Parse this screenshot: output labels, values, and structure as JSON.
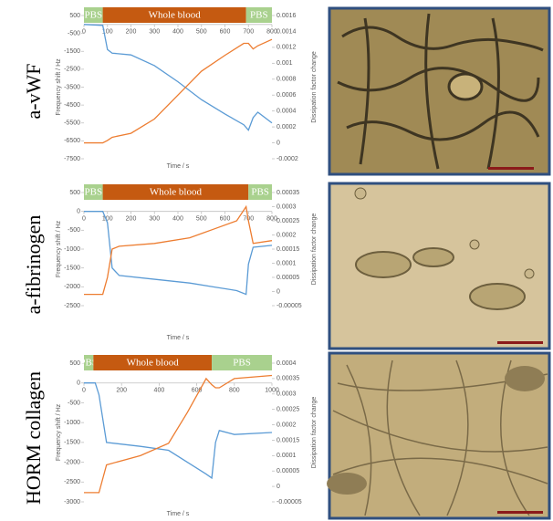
{
  "chart_data": [
    {
      "type": "line",
      "panel_label": "a-vWF",
      "xlabel": "Time / s",
      "ylabel": "Frequency shift / Hz",
      "y2label": "Dissipation factor change",
      "bands": [
        {
          "text": "PBS",
          "start": 0,
          "end": 80,
          "color": "#a9d18e"
        },
        {
          "text": "Whole blood",
          "start": 80,
          "end": 690,
          "color": "#c55a11"
        },
        {
          "text": "PBS",
          "start": 690,
          "end": 800,
          "color": "#a9d18e"
        }
      ],
      "x": [
        0,
        80,
        100,
        120,
        200,
        300,
        400,
        500,
        600,
        680,
        700,
        720,
        740,
        800
      ],
      "series": [
        {
          "color": "#5b9bd5",
          "values": [
            0,
            -50,
            -1400,
            -1600,
            -1700,
            -2300,
            -3200,
            -4200,
            -5000,
            -5600,
            -5900,
            -5200,
            -4900,
            -5500
          ]
        },
        {
          "color": "#ed7d31",
          "axis": "y2",
          "values": [
            0,
            0,
            3e-05,
            7e-05,
            0.00012,
            0.0003,
            0.0006,
            0.0009,
            0.0011,
            0.00125,
            0.00125,
            0.00118,
            0.00122,
            0.0013
          ]
        }
      ],
      "xlim": [
        0,
        800
      ],
      "xticks": [
        0,
        100,
        200,
        300,
        400,
        500,
        600,
        700,
        800
      ],
      "ylim": [
        -7500,
        500
      ],
      "yticks": [
        500,
        -500,
        -1500,
        -2500,
        -3500,
        -4500,
        -5500,
        -6500,
        -7500
      ],
      "y2lim": [
        -0.0002,
        0.0016
      ],
      "y2ticks": [
        -0.0002,
        0,
        0.0002,
        0.0004,
        0.0006,
        0.0008,
        0.001,
        0.0012,
        0.0014,
        0.0016
      ]
    },
    {
      "type": "line",
      "panel_label": "a-fibrinogen",
      "xlabel": "Time / s",
      "ylabel": "Frequency shift / Hz",
      "y2label": "Dissipation factor change",
      "bands": [
        {
          "text": "PBS",
          "start": 0,
          "end": 80,
          "color": "#a9d18e"
        },
        {
          "text": "Whole blood",
          "start": 80,
          "end": 700,
          "color": "#c55a11"
        },
        {
          "text": "PBS",
          "start": 700,
          "end": 800,
          "color": "#a9d18e"
        }
      ],
      "x": [
        0,
        80,
        100,
        120,
        150,
        300,
        450,
        550,
        650,
        690,
        700,
        720,
        800
      ],
      "series": [
        {
          "color": "#5b9bd5",
          "values": [
            0,
            0,
            -300,
            -1500,
            -1700,
            -1800,
            -1900,
            -2000,
            -2100,
            -2200,
            -1400,
            -950,
            -900
          ]
        },
        {
          "color": "#ed7d31",
          "axis": "y2",
          "values": [
            -1e-05,
            -1e-05,
            5e-05,
            0.00015,
            0.00016,
            0.00017,
            0.00019,
            0.00022,
            0.00025,
            0.0003,
            0.00025,
            0.00017,
            0.00018
          ]
        }
      ],
      "xlim": [
        0,
        800
      ],
      "xticks": [
        0,
        100,
        200,
        300,
        400,
        500,
        600,
        700,
        800
      ],
      "ylim": [
        -2500,
        500
      ],
      "yticks": [
        500,
        0,
        -500,
        -1000,
        -1500,
        -2000,
        -2500
      ],
      "y2lim": [
        -5e-05,
        0.00035
      ],
      "y2ticks": [
        -5e-05,
        0,
        5e-05,
        0.0001,
        0.00015,
        0.0002,
        0.00025,
        0.0003,
        0.00035
      ]
    },
    {
      "type": "line",
      "panel_label": "HORM collagen",
      "xlabel": "Time / s",
      "ylabel": "Frequency shift / Hz",
      "y2label": "Dissipation factor change",
      "bands": [
        {
          "text": "PBS",
          "start": 0,
          "end": 50,
          "color": "#a9d18e"
        },
        {
          "text": "Whole blood",
          "start": 50,
          "end": 680,
          "color": "#c55a11"
        },
        {
          "text": "PBS",
          "start": 680,
          "end": 1000,
          "color": "#a9d18e"
        }
      ],
      "x": [
        0,
        60,
        80,
        120,
        300,
        450,
        550,
        650,
        680,
        700,
        720,
        800,
        1000
      ],
      "series": [
        {
          "color": "#5b9bd5",
          "values": [
            0,
            0,
            -300,
            -1500,
            -1600,
            -1700,
            -2000,
            -2300,
            -2400,
            -1500,
            -1200,
            -1300,
            -1250
          ]
        },
        {
          "color": "#ed7d31",
          "axis": "y2",
          "values": [
            -2e-05,
            -2e-05,
            -2e-05,
            7e-05,
            0.0001,
            0.00014,
            0.00024,
            0.00035,
            0.00033,
            0.00032,
            0.00032,
            0.00035,
            0.00036
          ]
        }
      ],
      "xlim": [
        0,
        1000
      ],
      "xticks": [
        0,
        200,
        400,
        600,
        800,
        1000
      ],
      "ylim": [
        -3000,
        500
      ],
      "yticks": [
        500,
        0,
        -500,
        -1000,
        -1500,
        -2000,
        -2500,
        -3000
      ],
      "y2lim": [
        -5e-05,
        0.0004
      ],
      "y2ticks": [
        -5e-05,
        0,
        5e-05,
        0.0001,
        0.00015,
        0.0002,
        0.00025,
        0.0003,
        0.00035,
        0.0004
      ]
    }
  ]
}
